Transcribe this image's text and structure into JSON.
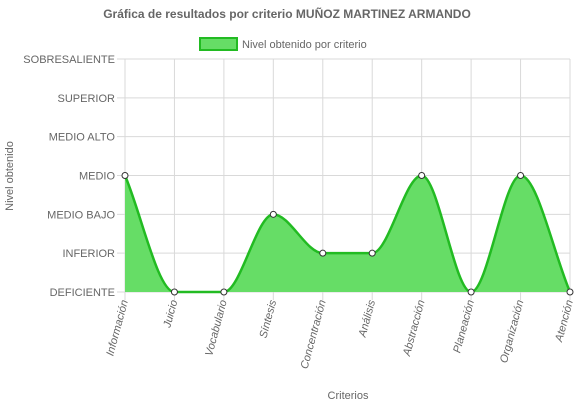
{
  "chart_data": {
    "type": "area",
    "title": "Gráfica de resultados por criterio MUÑOZ MARTINEZ ARMANDO",
    "xlabel": "Criterios",
    "ylabel": "Nivel obtenido",
    "legend_position": "top",
    "grid": true,
    "levels": [
      "DEFICIENTE",
      "INFERIOR",
      "MEDIO BAJO",
      "MEDIO",
      "MEDIO ALTO",
      "SUPERIOR",
      "SOBRESALIENTE"
    ],
    "categories": [
      "Información",
      "Juicio",
      "Vocabulario",
      "Síntesis",
      "Concentración",
      "Análisis",
      "Abstracción",
      "Planeación",
      "Organización",
      "Atención"
    ],
    "series": [
      {
        "name": "Nivel obtenido por criterio",
        "values": [
          "MEDIO",
          "DEFICIENTE",
          "DEFICIENTE",
          "MEDIO BAJO",
          "INFERIOR",
          "INFERIOR",
          "MEDIO",
          "DEFICIENTE",
          "MEDIO",
          "DEFICIENTE"
        ],
        "fill_color": "#66dd66",
        "line_color": "#22bb22"
      }
    ]
  }
}
